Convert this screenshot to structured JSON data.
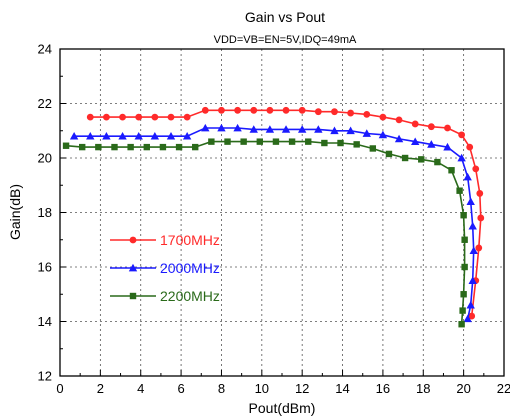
{
  "chart_data": {
    "type": "line",
    "title": "Gain vs Pout",
    "subtitle": "VDD=VB=EN=5V,IDQ=49mA",
    "xlabel": "Pout(dBm)",
    "ylabel": "Gain(dB)",
    "xlim": [
      0,
      22
    ],
    "ylim": [
      12,
      24
    ],
    "xticks": [
      "0",
      "2",
      "4",
      "6",
      "8",
      "10",
      "12",
      "14",
      "16",
      "18",
      "20",
      "22"
    ],
    "yticks": [
      "12",
      "14",
      "16",
      "18",
      "20",
      "22",
      "24"
    ],
    "grid": true,
    "legend_position": "left-center",
    "series": [
      {
        "name": "1700MHz",
        "color": "#ff2a2a",
        "marker": "circle",
        "x": [
          1.5,
          2.3,
          3.1,
          3.9,
          4.7,
          5.5,
          6.3,
          7.2,
          8.0,
          8.8,
          9.6,
          10.4,
          11.2,
          12.0,
          12.8,
          13.6,
          14.4,
          15.2,
          16.0,
          16.8,
          17.6,
          18.4,
          19.2,
          19.9,
          20.3,
          20.6,
          20.8,
          20.85,
          20.75,
          20.6,
          20.4
        ],
        "y": [
          21.5,
          21.5,
          21.5,
          21.5,
          21.5,
          21.5,
          21.5,
          21.75,
          21.75,
          21.75,
          21.75,
          21.75,
          21.75,
          21.75,
          21.7,
          21.7,
          21.65,
          21.6,
          21.5,
          21.4,
          21.25,
          21.15,
          21.1,
          20.85,
          20.4,
          19.6,
          18.7,
          17.8,
          16.7,
          15.5,
          14.2
        ]
      },
      {
        "name": "2000MHz",
        "color": "#1a1aff",
        "marker": "triangle",
        "x": [
          0.7,
          1.5,
          2.3,
          3.1,
          3.9,
          4.7,
          5.5,
          6.3,
          7.2,
          8.0,
          8.8,
          9.6,
          10.4,
          11.2,
          12.0,
          12.8,
          13.6,
          14.4,
          15.2,
          16.0,
          16.8,
          17.6,
          18.4,
          19.2,
          19.9,
          20.2,
          20.35,
          20.45,
          20.5,
          20.45,
          20.35,
          20.2
        ],
        "y": [
          20.8,
          20.8,
          20.8,
          20.8,
          20.8,
          20.8,
          20.8,
          20.8,
          21.1,
          21.1,
          21.1,
          21.05,
          21.05,
          21.05,
          21.05,
          21.05,
          21.0,
          21.0,
          20.9,
          20.85,
          20.7,
          20.6,
          20.5,
          20.4,
          20.0,
          19.3,
          18.4,
          17.5,
          16.6,
          15.5,
          14.6,
          14.1
        ]
      },
      {
        "name": "2200MHz",
        "color": "#2a6a1a",
        "marker": "square",
        "x": [
          0.3,
          1.1,
          1.9,
          2.7,
          3.5,
          4.3,
          5.1,
          5.9,
          6.7,
          7.5,
          8.3,
          9.1,
          9.9,
          10.7,
          11.5,
          12.3,
          13.1,
          13.9,
          14.7,
          15.5,
          16.3,
          17.1,
          17.9,
          18.7,
          19.4,
          19.8,
          20.0,
          20.05,
          20.05,
          20.0,
          19.95,
          19.9
        ],
        "y": [
          20.45,
          20.4,
          20.4,
          20.4,
          20.4,
          20.4,
          20.4,
          20.4,
          20.4,
          20.6,
          20.6,
          20.6,
          20.6,
          20.6,
          20.6,
          20.6,
          20.55,
          20.55,
          20.5,
          20.35,
          20.15,
          20.0,
          19.95,
          19.85,
          19.55,
          18.8,
          17.9,
          17.0,
          16.0,
          15.0,
          14.4,
          13.9
        ]
      }
    ]
  }
}
